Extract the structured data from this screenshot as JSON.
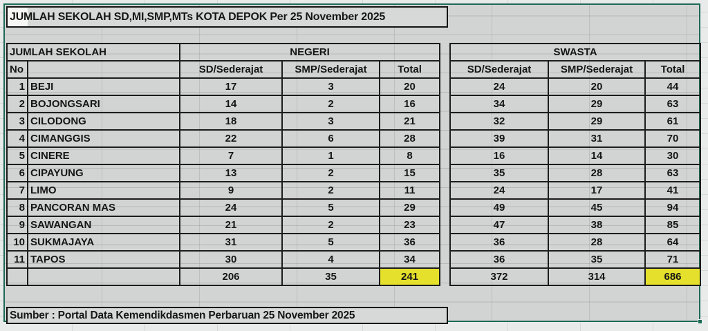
{
  "colors": {
    "cell_bg": "#d2d3d3",
    "selection_border": "#1d6a55",
    "highlight_yellow": "#e4e02c",
    "black_border": "#1c1c1c",
    "active_cell_bg": "#f6f6f4",
    "outside_bg": "#e9eaea"
  },
  "title": "JUMLAH SEKOLAH SD,MI,SMP,MTs KOTA DEPOK Per 25 November 2025",
  "table": {
    "section_label": "JUMLAH SEKOLAH",
    "group_headers": {
      "negeri": "NEGERI",
      "swasta": "SWASTA"
    },
    "col_headers": {
      "no": "No",
      "sd": "SD/Sederajat",
      "smp": "SMP/Sederajat",
      "total": "Total"
    },
    "rows": [
      {
        "no": 1,
        "name": "BEJI",
        "negeri": [
          17,
          3,
          20
        ],
        "swasta": [
          24,
          20,
          44
        ]
      },
      {
        "no": 2,
        "name": "BOJONGSARI",
        "negeri": [
          14,
          2,
          16
        ],
        "swasta": [
          34,
          29,
          63
        ]
      },
      {
        "no": 3,
        "name": "CILODONG",
        "negeri": [
          18,
          3,
          21
        ],
        "swasta": [
          32,
          29,
          61
        ]
      },
      {
        "no": 4,
        "name": "CIMANGGIS",
        "negeri": [
          22,
          6,
          28
        ],
        "swasta": [
          39,
          31,
          70
        ]
      },
      {
        "no": 5,
        "name": "CINERE",
        "negeri": [
          7,
          1,
          8
        ],
        "swasta": [
          16,
          14,
          30
        ]
      },
      {
        "no": 6,
        "name": "CIPAYUNG",
        "negeri": [
          13,
          2,
          15
        ],
        "swasta": [
          35,
          28,
          63
        ]
      },
      {
        "no": 7,
        "name": "LIMO",
        "negeri": [
          9,
          2,
          11
        ],
        "swasta": [
          24,
          17,
          41
        ]
      },
      {
        "no": 8,
        "name": "PANCORAN MAS",
        "negeri": [
          24,
          5,
          29
        ],
        "swasta": [
          49,
          45,
          94
        ]
      },
      {
        "no": 9,
        "name": "SAWANGAN",
        "negeri": [
          21,
          2,
          23
        ],
        "swasta": [
          47,
          38,
          85
        ]
      },
      {
        "no": 10,
        "name": "SUKMAJAYA",
        "negeri": [
          31,
          5,
          36
        ],
        "swasta": [
          36,
          28,
          64
        ]
      },
      {
        "no": 11,
        "name": "TAPOS",
        "negeri": [
          30,
          4,
          34
        ],
        "swasta": [
          36,
          35,
          71
        ]
      }
    ],
    "totals": {
      "negeri": [
        206,
        35,
        241
      ],
      "swasta": [
        372,
        314,
        686
      ]
    }
  },
  "source": "Sumber : Portal Data Kemendikdasmen Perbaruan 25 November 2025"
}
